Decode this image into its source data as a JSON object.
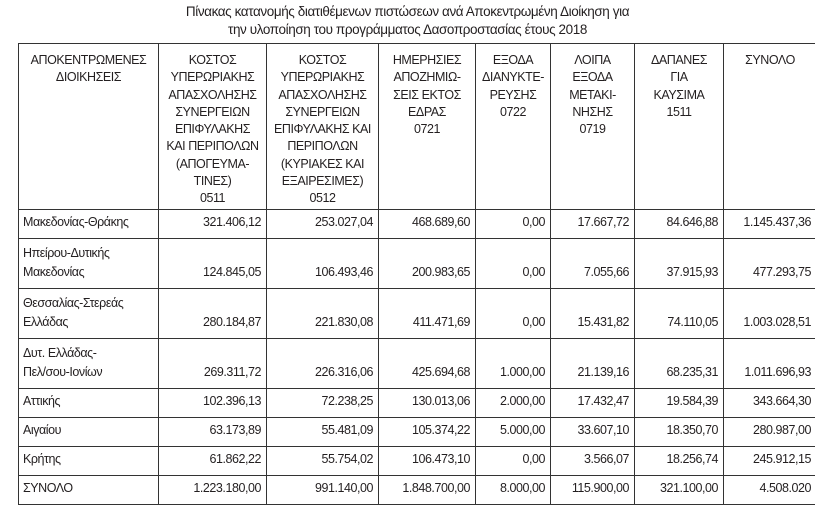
{
  "title": "Πίνακας κατανομής διατιθέμενων πιστώσεων ανά Αποκεντρωμένη Διοίκηση για\nτην υλοποίηση του προγράμματος Δασοπροστασίας έτους 2018",
  "headers": [
    "ΑΠΟΚΕΝΤΡΩΜΕΝΕΣ\nΔΙΟΙΚΗΣΕΙΣ",
    "ΚΟΣΤΟΣ\nΥΠΕΡΩΡΙΑΚΗΣ\nΑΠΑΣΧΟΛΗΣΗΣ\nΣΥΝΕΡΓΕΙΩΝ\nΕΠΙΦΥΛΑΚΗΣ\nΚΑΙ ΠΕΡΙΠΟΛΩΝ\n(ΑΠΟΓΕΥΜΑ-\nΤΙΝΕΣ)\n0511",
    "ΚΟΣΤΟΣ\nΥΠΕΡΩΡΙΑΚΗΣ\nΑΠΑΣΧΟΛΗΣΗΣ\nΣΥΝΕΡΓΕΙΩΝ\nΕΠΙΦΥΛΑΚΗΣ ΚΑΙ\nΠΕΡΙΠΟΛΩΝ\n(ΚΥΡΙΑΚΕΣ ΚΑΙ\nΕΞΑΙΡΕΣΙΜΕΣ)\n0512",
    "ΗΜΕΡΗΣΙΕΣ\nΑΠΟΖΗΜΙΩ-\nΣΕΙΣ ΕΚΤΟΣ\nΕΔΡΑΣ\n0721",
    "ΕΞΟΔΑ\nΔΙΑΝΥΚΤΕ-\nΡΕΥΣΗΣ\n0722",
    "ΛΟΙΠΑ\nΕΞΟΔΑ\nΜΕΤΑΚΙ-\nΝΗΣΗΣ\n0719",
    "ΔΑΠΑΝΕΣ\nΓΙΑ\nΚΑΥΣΙΜΑ\n1511",
    "ΣΥΝΟΛΟ"
  ],
  "rows": [
    [
      "Μακεδονίας-Θράκης",
      "321.406,12",
      "253.027,04",
      "468.689,60",
      "0,00",
      "17.667,72",
      "84.646,88",
      "1.145.437,36"
    ],
    [
      "Ηπείρου-Δυτικής\nΜακεδονίας",
      "124.845,05",
      "106.493,46",
      "200.983,65",
      "0,00",
      "7.055,66",
      "37.915,93",
      "477.293,75"
    ],
    [
      "Θεσσαλίας-Στερεάς\nΕλλάδας",
      "280.184,87",
      "221.830,08",
      "411.471,69",
      "0,00",
      "15.431,82",
      "74.110,05",
      "1.003.028,51"
    ],
    [
      "Δυτ. Ελλάδας-\nΠελ/σου-Ιονίων",
      "269.311,72",
      "226.316,06",
      "425.694,68",
      "1.000,00",
      "21.139,16",
      "68.235,31",
      "1.011.696,93"
    ],
    [
      "Αττικής",
      "102.396,13",
      "72.238,25",
      "130.013,06",
      "2.000,00",
      "17.432,47",
      "19.584,39",
      "343.664,30"
    ],
    [
      "Αιγαίου",
      "63.173,89",
      "55.481,09",
      "105.374,22",
      "5.000,00",
      "33.607,10",
      "18.350,70",
      "280.987,00"
    ],
    [
      "Κρήτης",
      "61.862,22",
      "55.754,02",
      "106.473,10",
      "0,00",
      "3.566,07",
      "18.256,74",
      "245.912,15"
    ],
    [
      "ΣΥΝΟΛΟ",
      "1.223.180,00",
      "991.140,00",
      "1.848.700,00",
      "8.000,00",
      "115.900,00",
      "321.100,00",
      "4.508.020"
    ]
  ]
}
